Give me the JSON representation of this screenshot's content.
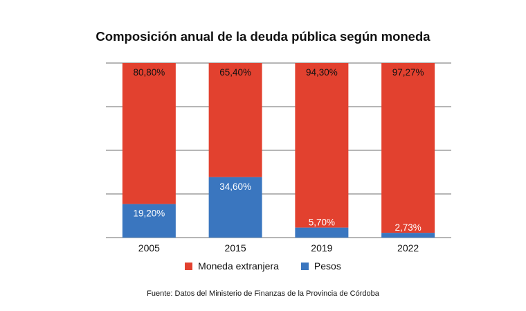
{
  "chart_data": {
    "type": "bar",
    "stacked": true,
    "title": "Composición anual de la deuda pública según moneda",
    "categories": [
      "2005",
      "2015",
      "2019",
      "2022"
    ],
    "series": [
      {
        "name": "Pesos",
        "color": "#3a76bf",
        "values": [
          19.2,
          34.6,
          5.7,
          2.73
        ],
        "labels": [
          "19,20%",
          "34,60%",
          "5,70%",
          "2,73%"
        ]
      },
      {
        "name": "Moneda extranjera",
        "color": "#e2412f",
        "values": [
          80.8,
          65.4,
          94.3,
          97.27
        ],
        "labels": [
          "80,80%",
          "65,40%",
          "94,30%",
          "97,27%"
        ]
      }
    ],
    "ylim": [
      0,
      100
    ],
    "grid": true,
    "legend_position": "bottom"
  },
  "legend": {
    "foreign_label": "Moneda extranjera",
    "pesos_label": "Pesos",
    "foreign_color": "#e2412f",
    "pesos_color": "#3a76bf"
  },
  "source": "Fuente: Datos del Ministerio de Finanzas de la Provincia de Córdoba"
}
